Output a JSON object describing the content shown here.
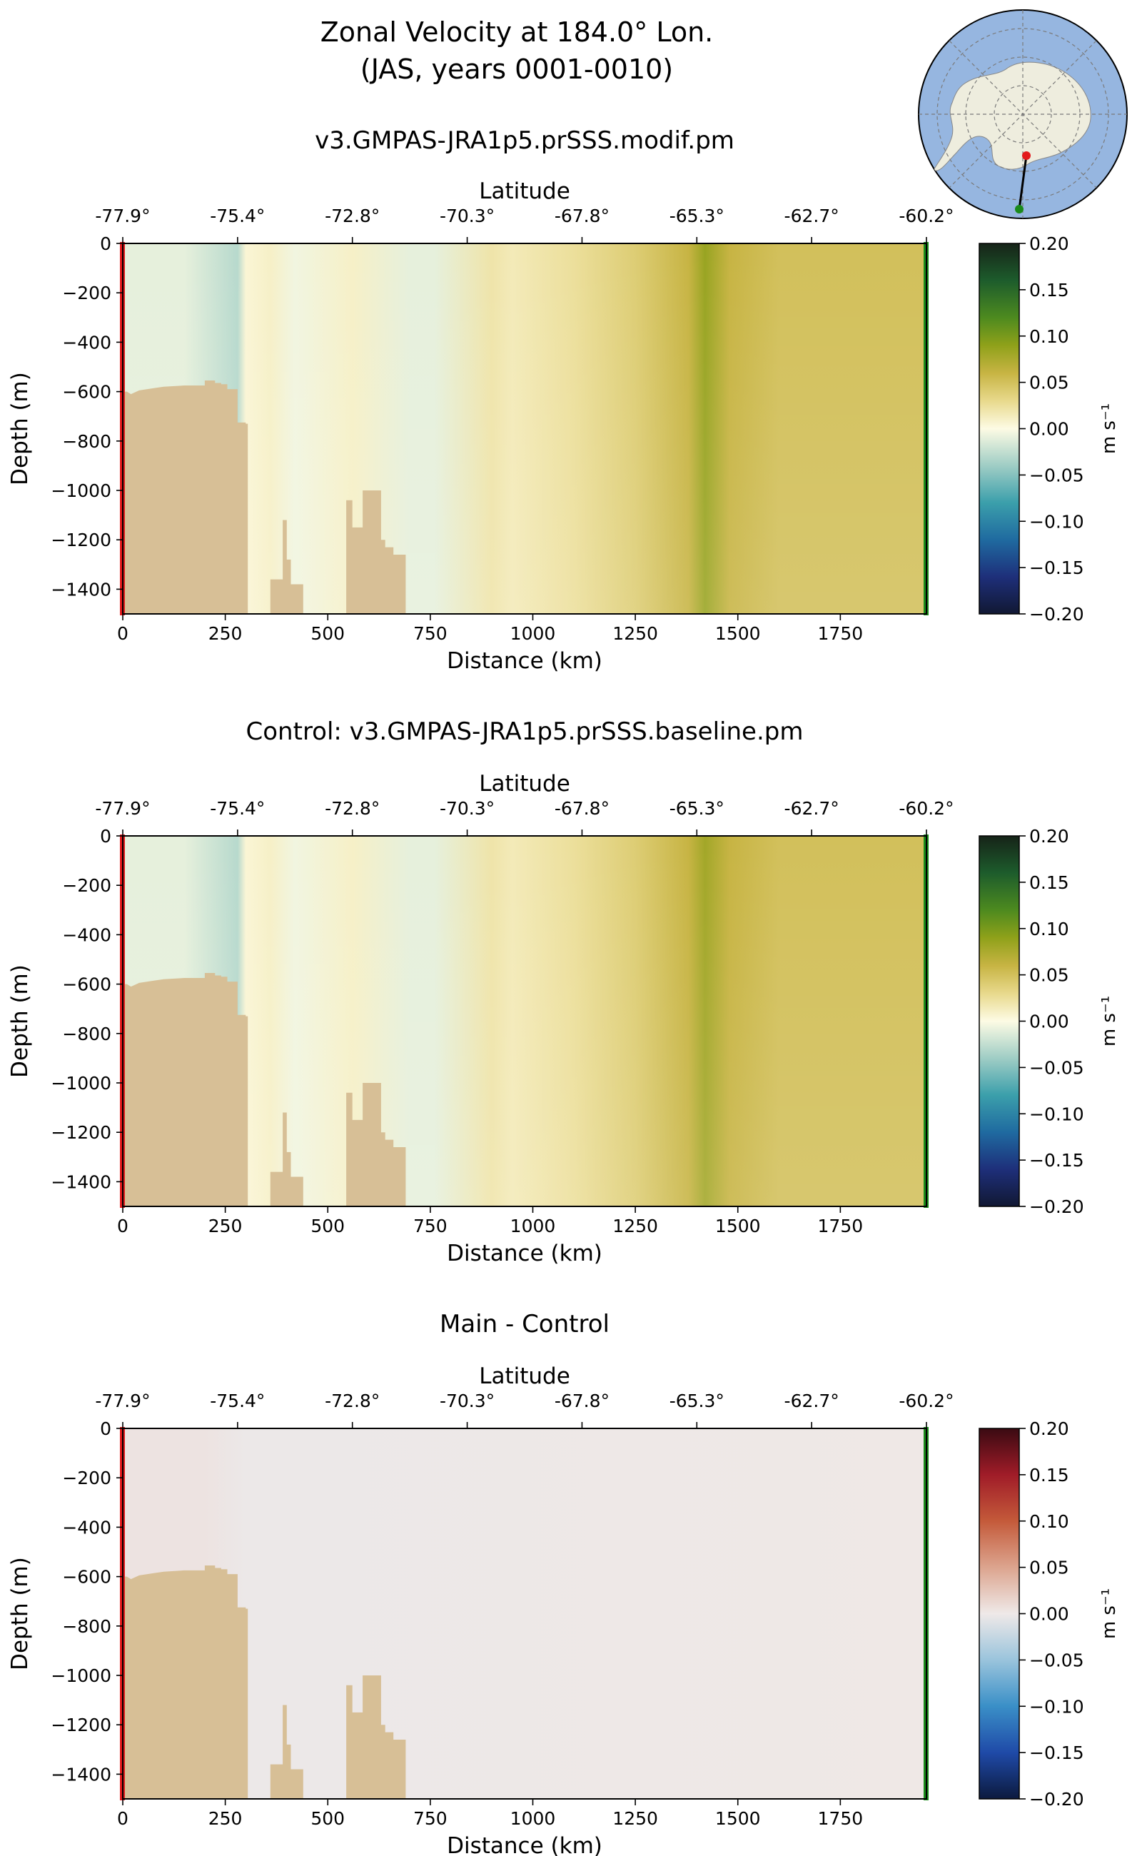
{
  "figure": {
    "title_line1": "Zonal Velocity at 184.0° Lon.",
    "title_line2": "(JAS, years 0001-0010)",
    "inset_map": {
      "description_icon": "antarctica-map-icon",
      "colors": {
        "ocean": "#96b6e0",
        "land": "#eeedde"
      }
    }
  },
  "chart_data": [
    {
      "type": "heatmap",
      "title": "v3.GMPAS-JRA1p5.prSSS.modif.pm",
      "xlabel": "Distance (km)",
      "ylabel": "Depth (m)",
      "top_xlabel": "Latitude",
      "xlim": [
        0,
        1960
      ],
      "ylim": [
        -1500,
        0
      ],
      "xticks": [
        0,
        250,
        500,
        750,
        1000,
        1250,
        1500,
        1750
      ],
      "yticks": [
        0,
        -200,
        -400,
        -600,
        -800,
        -1000,
        -1200,
        -1400
      ],
      "top_ticks": [
        "-77.9°",
        "-75.4°",
        "-72.8°",
        "-70.3°",
        "-67.8°",
        "-65.3°",
        "-62.7°",
        "-60.2°"
      ],
      "top_tick_positions": [
        0,
        280,
        560,
        840,
        1120,
        1400,
        1680,
        1960
      ],
      "colorbar": {
        "label": "m s⁻¹",
        "min": -0.2,
        "max": 0.2,
        "ticks": [
          "0.20",
          "0.15",
          "0.10",
          "0.05",
          "0.00",
          "−0.05",
          "−0.10",
          "−0.15",
          "−0.20"
        ],
        "colormap": "cmo.delta"
      },
      "velocity_by_distance": {
        "x_km": [
          0,
          150,
          280,
          300,
          360,
          420,
          560,
          700,
          760,
          900,
          950,
          1100,
          1250,
          1380,
          1420,
          1480,
          1600,
          1800,
          1960
        ],
        "v_ms": [
          -0.01,
          -0.01,
          -0.03,
          0.005,
          0.01,
          -0.005,
          0.01,
          -0.01,
          -0.01,
          0.02,
          0.015,
          0.025,
          0.04,
          0.06,
          0.085,
          0.06,
          0.05,
          0.05,
          0.05
        ]
      }
    },
    {
      "type": "heatmap",
      "title": "Control: v3.GMPAS-JRA1p5.prSSS.baseline.pm",
      "xlabel": "Distance (km)",
      "ylabel": "Depth (m)",
      "top_xlabel": "Latitude",
      "xlim": [
        0,
        1960
      ],
      "ylim": [
        -1500,
        0
      ],
      "xticks": [
        0,
        250,
        500,
        750,
        1000,
        1250,
        1500,
        1750
      ],
      "yticks": [
        0,
        -200,
        -400,
        -600,
        -800,
        -1000,
        -1200,
        -1400
      ],
      "top_ticks": [
        "-77.9°",
        "-75.4°",
        "-72.8°",
        "-70.3°",
        "-67.8°",
        "-65.3°",
        "-62.7°",
        "-60.2°"
      ],
      "top_tick_positions": [
        0,
        280,
        560,
        840,
        1120,
        1400,
        1680,
        1960
      ],
      "colorbar": {
        "label": "m s⁻¹",
        "min": -0.2,
        "max": 0.2,
        "ticks": [
          "0.20",
          "0.15",
          "0.10",
          "0.05",
          "0.00",
          "−0.05",
          "−0.10",
          "−0.15",
          "−0.20"
        ],
        "colormap": "cmo.delta"
      },
      "velocity_by_distance": {
        "x_km": [
          0,
          150,
          280,
          300,
          360,
          420,
          560,
          700,
          760,
          900,
          950,
          1100,
          1250,
          1380,
          1420,
          1480,
          1600,
          1800,
          1960
        ],
        "v_ms": [
          -0.01,
          -0.01,
          -0.03,
          0.005,
          0.01,
          -0.005,
          0.01,
          -0.01,
          -0.01,
          0.02,
          0.015,
          0.025,
          0.04,
          0.06,
          0.08,
          0.06,
          0.05,
          0.05,
          0.05
        ]
      }
    },
    {
      "type": "heatmap",
      "title": "Main - Control",
      "xlabel": "Distance (km)",
      "ylabel": "Depth (m)",
      "top_xlabel": "Latitude",
      "xlim": [
        0,
        1960
      ],
      "ylim": [
        -1500,
        0
      ],
      "xticks": [
        0,
        250,
        500,
        750,
        1000,
        1250,
        1500,
        1750
      ],
      "yticks": [
        0,
        -200,
        -400,
        -600,
        -800,
        -1000,
        -1200,
        -1400
      ],
      "top_ticks": [
        "-77.9°",
        "-75.4°",
        "-72.8°",
        "-70.3°",
        "-67.8°",
        "-65.3°",
        "-62.7°",
        "-60.2°"
      ],
      "top_tick_positions": [
        0,
        280,
        560,
        840,
        1120,
        1400,
        1680,
        1960
      ],
      "colorbar": {
        "label": "m s⁻¹",
        "min": -0.2,
        "max": 0.2,
        "ticks": [
          "0.20",
          "0.15",
          "0.10",
          "0.05",
          "0.00",
          "−0.05",
          "−0.10",
          "−0.15",
          "−0.20"
        ],
        "colormap": "RdBu_r"
      },
      "velocity_by_distance": {
        "x_km": [
          0,
          200,
          300,
          1960
        ],
        "v_ms": [
          0.004,
          0.004,
          -0.002,
          0.001
        ]
      }
    }
  ],
  "bathymetry": {
    "x_km": [
      0,
      10,
      20,
      40,
      60,
      80,
      100,
      150,
      200,
      200,
      225,
      225,
      240,
      240,
      255,
      255,
      280,
      280,
      300,
      300,
      305,
      305,
      360,
      360,
      390,
      390,
      400,
      400,
      410,
      410,
      440,
      440,
      545,
      545,
      560,
      560,
      585,
      585,
      630,
      630,
      640,
      640,
      660,
      660,
      690,
      690
    ],
    "depth_m": [
      -600,
      -600,
      -610,
      -595,
      -590,
      -585,
      -580,
      -575,
      -575,
      -555,
      -555,
      -565,
      -565,
      -570,
      -570,
      -590,
      -590,
      -725,
      -725,
      -730,
      -730,
      -1500,
      -1500,
      -1360,
      -1360,
      -1120,
      -1120,
      -1280,
      -1280,
      -1380,
      -1380,
      -1500,
      -1500,
      -1040,
      -1040,
      -1150,
      -1150,
      -1000,
      -1000,
      -1200,
      -1200,
      -1230,
      -1230,
      -1260,
      -1260,
      -1500
    ]
  }
}
